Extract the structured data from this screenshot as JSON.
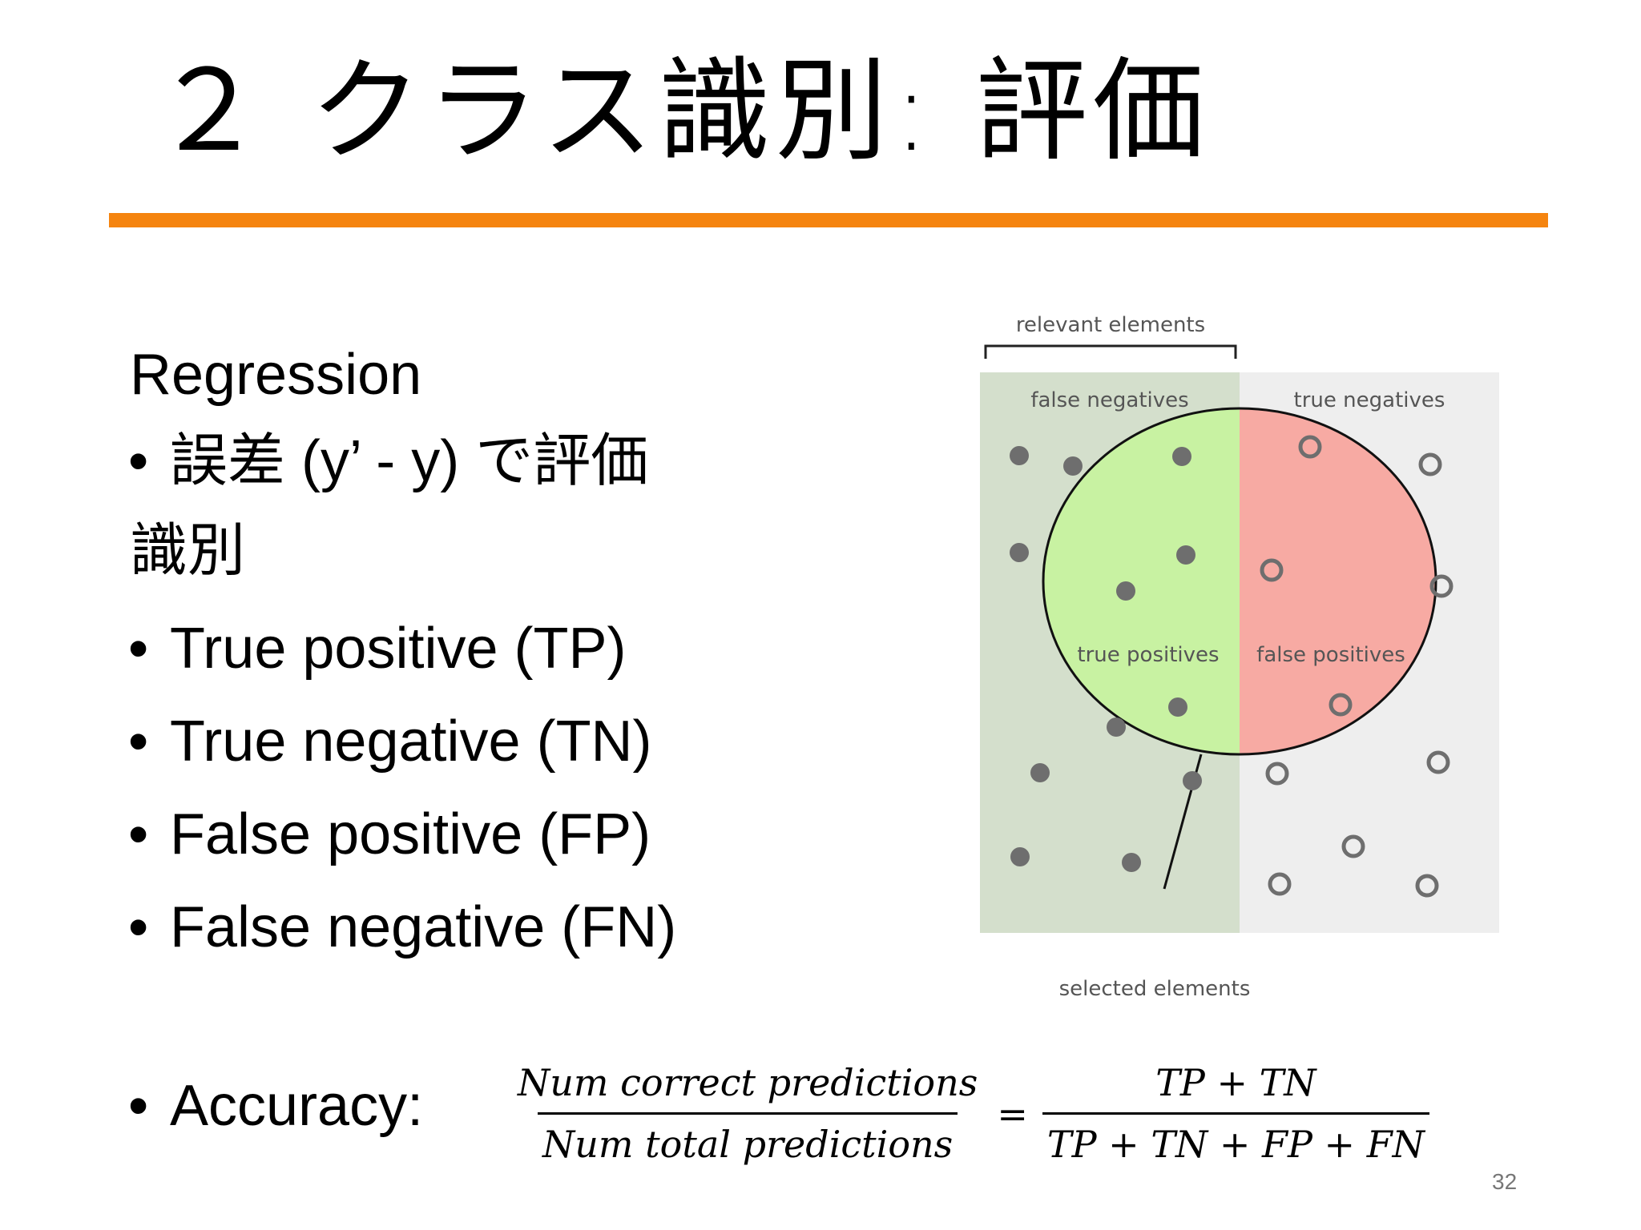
{
  "slide": {
    "title": "２ クラス識別: 評価",
    "page_number": "32"
  },
  "content": {
    "heading_regression": "Regression",
    "regression_bullet": "誤差 (y’ - y) で評価",
    "heading_classification": "識別",
    "bullets": [
      "True positive (TP)",
      "True negative (TN)",
      "False positive (FP)",
      "False negative (FN)"
    ],
    "accuracy_label": "Accuracy:",
    "formula": {
      "left_numerator": "Num correct predictions",
      "left_denominator": "Num total predictions",
      "equals": "=",
      "right_numerator": "TP + TN",
      "right_denominator": "TP + TN + FP + FN"
    }
  },
  "diagram": {
    "relevant_elements": "relevant elements",
    "false_negatives": "false negatives",
    "true_negatives": "true negatives",
    "true_positives": "true positives",
    "false_positives": "false positives",
    "selected_elements": "selected elements",
    "colors": {
      "relevant_bg": "#d4dfcc",
      "irrelevant_bg": "#eeeeee",
      "true_positive": "#c8f2a2",
      "false_positive": "#f7aaa3",
      "dot": "#6e6e6e"
    }
  }
}
